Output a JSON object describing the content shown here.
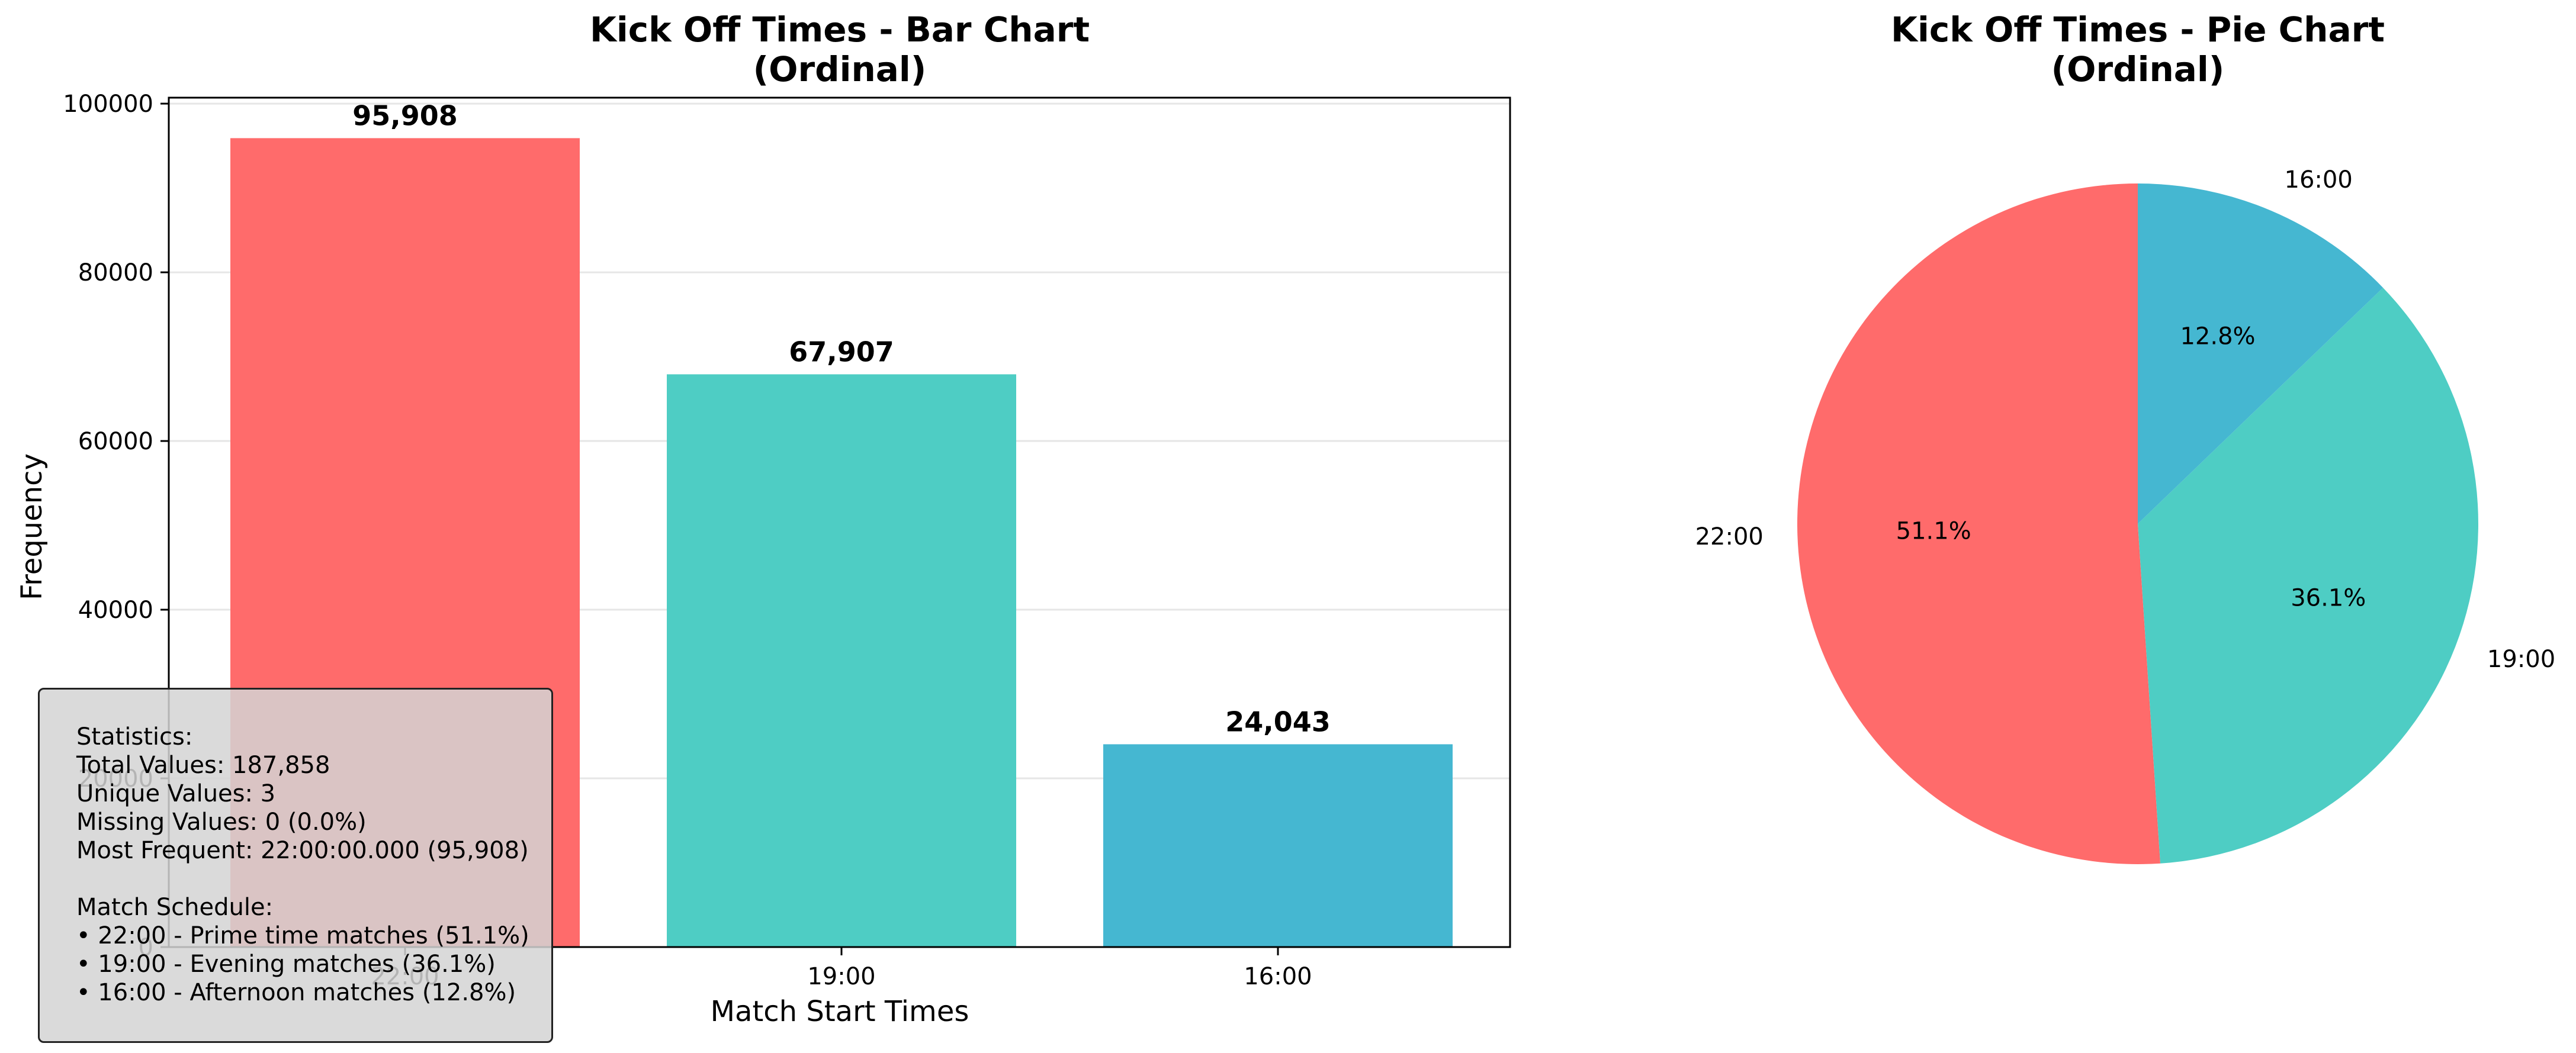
{
  "chart_data": [
    {
      "type": "bar",
      "title": "Kick Off Times - Bar Chart\n(Ordinal)",
      "title_lines": [
        "Kick Off Times - Bar Chart",
        "(Ordinal)"
      ],
      "xlabel": "Match Start Times",
      "ylabel": "Frequency",
      "categories": [
        "22:00",
        "19:00",
        "16:00"
      ],
      "values": [
        95908,
        67907,
        24043
      ],
      "value_labels": [
        "95,908",
        "67,907",
        "24,043"
      ],
      "colors": [
        "#ff6b6b",
        "#4ecdc4",
        "#45b7d1"
      ],
      "ylim": [
        0,
        100708
      ],
      "yticks": [
        0,
        20000,
        40000,
        60000,
        80000,
        100000
      ],
      "ytick_labels": [
        "0",
        "20000",
        "40000",
        "60000",
        "80000",
        "100000"
      ],
      "grid": "y"
    },
    {
      "type": "pie",
      "title": "Kick Off Times - Pie Chart\n(Ordinal)",
      "title_lines": [
        "Kick Off Times - Pie Chart",
        "(Ordinal)"
      ],
      "labels": [
        "22:00",
        "19:00",
        "16:00"
      ],
      "values": [
        95908,
        67907,
        24043
      ],
      "pct_labels": [
        "51.1%",
        "36.1%",
        "12.8%"
      ],
      "colors": [
        "#ff6b6b",
        "#4ecdc4",
        "#45b7d1"
      ],
      "start_angle_deg": 90,
      "direction": "counterclockwise"
    }
  ],
  "stats_box": {
    "lines": [
      "Statistics:",
      "Total Values: 187,858",
      "Unique Values: 3",
      "Missing Values: 0 (0.0%)",
      "Most Frequent: 22:00:00.000 (95,908)",
      "",
      "Match Schedule:",
      "• 22:00 - Prime time matches (51.1%)",
      "• 19:00 - Evening matches (36.1%)",
      "• 16:00 - Afternoon matches (12.8%)"
    ]
  }
}
